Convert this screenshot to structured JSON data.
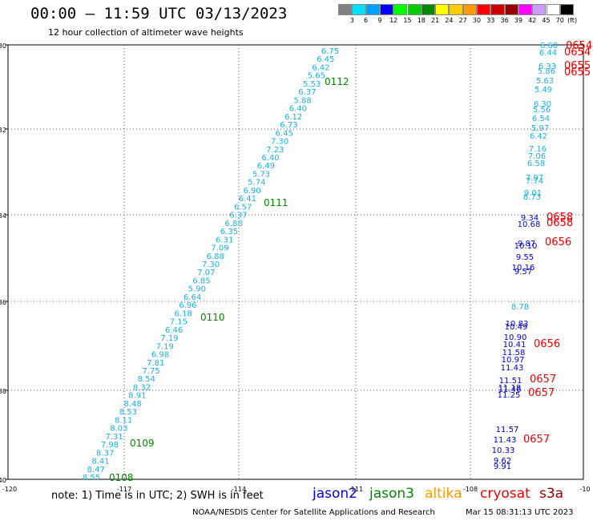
{
  "header": {
    "title": "00:00 — 11:59 UTC 03/13/2023",
    "subtitle": "12 hour collection of altimeter wave heights"
  },
  "legend": {
    "colors": [
      "#808080",
      "#00e0ff",
      "#00a0ff",
      "#0000ff",
      "#00ff00",
      "#00cc00",
      "#008800",
      "#ffff00",
      "#ffcc00",
      "#ff9900",
      "#ff0000",
      "#cc0000",
      "#990000",
      "#ff00ff",
      "#cc99ff",
      "#ffffff",
      "#000000"
    ],
    "labels": [
      "3",
      "6",
      "9",
      "12",
      "15",
      "18",
      "21",
      "24",
      "27",
      "30",
      "33",
      "36",
      "39",
      "42",
      "45",
      "70",
      "(ft)"
    ]
  },
  "axes": {
    "lat_ticks": [
      "-30",
      "-32",
      "-34",
      "-36",
      "-38",
      "-40"
    ],
    "lon_ticks": [
      "-120",
      "-117",
      "-114",
      "-111",
      "-108",
      "-10"
    ]
  },
  "tracks": {
    "jason3_wave_heights": [
      "6.75",
      "6.45",
      "6.42",
      "5.65",
      "5.53",
      "6.37",
      "5.88",
      "6.40",
      "6.12",
      "6.73",
      "6.45",
      "7.30",
      "7.23",
      "6.40",
      "6.49",
      "5.73",
      "5.74",
      "6.90",
      "6.41",
      "6.57",
      "6.37",
      "6.88",
      "6.35",
      "6.31",
      "7.09",
      "6.88",
      "7.30",
      "7.07",
      "6.85",
      "5.90",
      "6.64",
      "6.96",
      "6.18",
      "7.15",
      "6.46",
      "7.19",
      "7.19",
      "6.98",
      "7.81",
      "7.75",
      "8.54",
      "8.32",
      "8.91",
      "8.48",
      "8.53",
      "8.11",
      "8.03",
      "7.31",
      "7.98",
      "8.37",
      "8.41",
      "8.47",
      "8.55"
    ],
    "jason3_time_labels": [
      "0112",
      "0111",
      "0110",
      "0109",
      "0108"
    ],
    "east_upper_heights": [
      "6.60",
      "6.44",
      "6.33",
      "5.86",
      "5.63",
      "5.49",
      "6.30",
      "5.56",
      "6.54",
      "5.97",
      "6.42",
      "7.16",
      "7.06",
      "6.58",
      "7.97",
      "7.74",
      "9.01",
      "8.73",
      "9.34",
      "10.68"
    ],
    "east_lower_heights": [
      "9.87",
      "10.10",
      "9.55",
      "10.16",
      "9.57",
      "8.78",
      "10.83",
      "10.49",
      "10.90",
      "10.41",
      "11.58",
      "10.97",
      "11.43",
      "11.51",
      "11.18",
      "11.46",
      "11.25",
      "11.57",
      "11.43",
      "10.33",
      "9.62",
      "9.91"
    ],
    "cryosat_time_labels": [
      "0654",
      "0654",
      "0655",
      "0655",
      "0658",
      "0658",
      "0656",
      "0656",
      "0657",
      "0657",
      "0657"
    ]
  },
  "note": "note: 1) Time is in UTC; 2) SWH is in feet",
  "satellites": [
    {
      "name": "jason2",
      "color": "#0000dd"
    },
    {
      "name": "jason3",
      "color": "#008800"
    },
    {
      "name": "altika",
      "color": "#ff9900"
    },
    {
      "name": "cryosat",
      "color": "#ee0000"
    },
    {
      "name": "s3a",
      "color": "#990000"
    }
  ],
  "footer": {
    "left": "NOAA/NESDIS Center for Satellite Applications and Research",
    "right": "Mar 15 08:31:13 UTC 2023"
  },
  "colors": {
    "jason3_values": "#1ab0e0",
    "east_values": "#0000cc",
    "time_labels": "#008800",
    "cryosat_labels": "#ee0000"
  }
}
